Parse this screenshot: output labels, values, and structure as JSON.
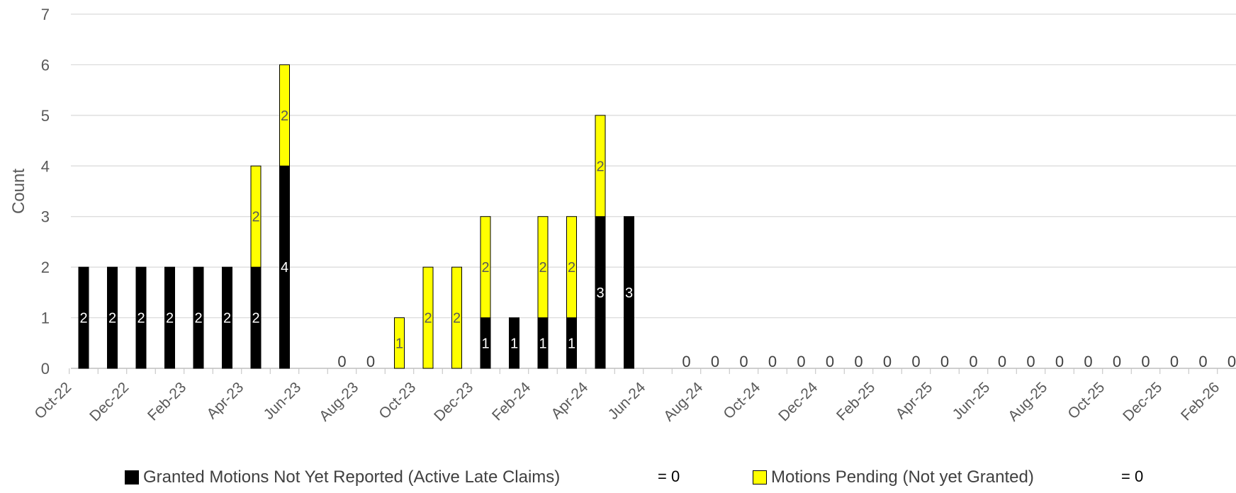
{
  "chart_data": {
    "type": "bar",
    "stacked": true,
    "ylabel": "Count",
    "xlabel": "",
    "ylim": [
      0,
      7
    ],
    "yticks": [
      "0",
      "1",
      "2",
      "3",
      "4",
      "5",
      "6",
      "7"
    ],
    "grid": true,
    "legend_position": "bottom",
    "x_tick_labels": [
      "Oct-22",
      "Dec-22",
      "Feb-23",
      "Apr-23",
      "Jun-23",
      "Aug-23",
      "Oct-23",
      "Dec-23",
      "Feb-24",
      "Apr-24",
      "Jun-24",
      "Aug-24",
      "Oct-24",
      "Dec-24",
      "Feb-25",
      "Apr-25",
      "Jun-25",
      "Aug-25",
      "Oct-25",
      "Dec-25",
      "Feb-26"
    ],
    "categories": [
      "Oct-22",
      "Nov-22",
      "Dec-22",
      "Jan-23",
      "Feb-23",
      "Mar-23",
      "Apr-23",
      "May-23",
      "Jun-23",
      "Jul-23",
      "Aug-23",
      "Sep-23",
      "Oct-23",
      "Nov-23",
      "Dec-23",
      "Jan-24",
      "Feb-24",
      "Mar-24",
      "Apr-24",
      "May-24",
      "Jun-24",
      "Jul-24",
      "Aug-24",
      "Sep-24",
      "Oct-24",
      "Nov-24",
      "Dec-24",
      "Jan-25",
      "Feb-25",
      "Mar-25",
      "Apr-25",
      "May-25",
      "Jun-25",
      "Jul-25",
      "Aug-25",
      "Sep-25",
      "Oct-25",
      "Nov-25",
      "Dec-25",
      "Jan-26",
      "Feb-26"
    ],
    "series": [
      {
        "name": "Granted Motions Not Yet Reported (Active Late Claims)",
        "color": "#000000",
        "values": [
          2,
          2,
          2,
          2,
          2,
          2,
          2,
          4,
          null,
          0,
          0,
          0,
          0,
          0,
          1,
          1,
          1,
          1,
          3,
          3,
          null,
          0,
          0,
          0,
          0,
          0,
          0,
          0,
          0,
          0,
          0,
          0,
          0,
          0,
          0,
          0,
          0,
          0,
          0,
          0,
          0
        ]
      },
      {
        "name": "Motions Pending  (Not yet Granted)",
        "color": "#ffff00",
        "values": [
          0,
          0,
          0,
          0,
          0,
          0,
          2,
          2,
          null,
          0,
          0,
          1,
          2,
          2,
          2,
          0,
          2,
          2,
          2,
          0,
          null,
          0,
          0,
          0,
          0,
          0,
          0,
          0,
          0,
          0,
          0,
          0,
          0,
          0,
          0,
          0,
          0,
          0,
          0,
          0,
          0
        ]
      }
    ],
    "zero_labels": [
      "0",
      "0",
      "0",
      "0",
      "0",
      "0",
      "0",
      "0",
      "0",
      "0",
      "0",
      "0",
      "0",
      "0",
      "0",
      "0",
      "0",
      "0",
      "0",
      "0",
      "0",
      "0"
    ],
    "legend_entries": [
      {
        "label": "Granted Motions Not Yet Reported (Active Late Claims)",
        "suffix": "= 0",
        "color": "#000000"
      },
      {
        "label": "Motions Pending  (Not yet Granted)",
        "suffix": "= 0",
        "color": "#ffff00"
      }
    ]
  }
}
